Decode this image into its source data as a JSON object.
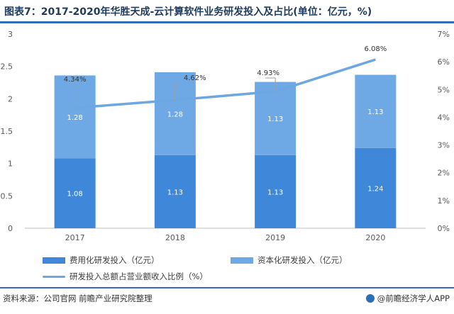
{
  "title": "图表7：2017-2020年华胜天成-云计算软件业务研发投入及占比(单位：亿元，%)",
  "chart_data": {
    "type": "bar",
    "stacked": true,
    "categories": [
      "2017",
      "2018",
      "2019",
      "2020"
    ],
    "series": [
      {
        "name": "费用化研发投入（亿元）",
        "values": [
          1.08,
          1.13,
          1.13,
          1.24
        ],
        "color": "#3f88d9",
        "axis": "left"
      },
      {
        "name": "资本化研发投入（亿元）",
        "values": [
          1.28,
          1.28,
          1.13,
          1.13
        ],
        "color": "#6ea9e6",
        "axis": "left"
      },
      {
        "name": "研发投入总额占营业额收入比例（%）",
        "type": "line",
        "values": [
          4.34,
          4.62,
          4.93,
          6.08
        ],
        "value_labels": [
          "4.34%",
          "4.62%",
          "4.93%",
          "6.08%"
        ],
        "color": "#6da7e2",
        "axis": "right"
      }
    ],
    "left_axis": {
      "min": 0,
      "max": 3,
      "ticks": [
        "0",
        "0.5",
        "1",
        "1.5",
        "2",
        "2.5",
        "3"
      ]
    },
    "right_axis": {
      "min": 0,
      "max": 7,
      "ticks": [
        "0%",
        "1%",
        "2%",
        "3%",
        "4%",
        "5%",
        "6%",
        "7%"
      ]
    },
    "grid": false,
    "legend_position": "bottom"
  },
  "footer": {
    "source": "资料来源：公司官网 前瞻产业研究院整理",
    "brand": "@前瞻经济学人APP"
  }
}
